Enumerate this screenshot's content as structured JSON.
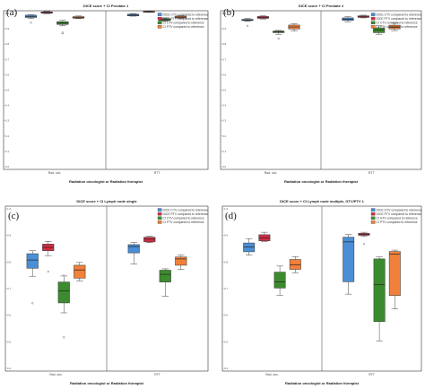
{
  "chart_data": [
    {
      "type": "box",
      "panel_label": "(a)",
      "title": "DICE score + CI Prostate 1",
      "xlabel": "Radiation oncologist or Radiation therapist",
      "categories": [
        "Rad. onc.",
        "RTT"
      ],
      "ylim": [
        0.0,
        1.0
      ],
      "yticks": [
        "1.0",
        "0.9",
        "0.8",
        "0.7",
        "0.6",
        "0.5",
        "0.4",
        "0.3",
        "0.2",
        "0.1",
        "0.0"
      ],
      "legend": "top-right",
      "series": [
        {
          "name": "DICE CTV compared to reference",
          "color": "#4a8fd6",
          "boxes": [
            {
              "whislo": 0.952,
              "q1": 0.958,
              "med": 0.962,
              "q3": 0.972,
              "whishi": 0.975,
              "fliers": [
                0.925
              ]
            },
            {
              "whislo": 0.966,
              "q1": 0.968,
              "med": 0.972,
              "q3": 0.978,
              "whishi": 0.982,
              "fliers": []
            }
          ]
        },
        {
          "name": "DICE PTV compared to reference",
          "color": "#d22d45",
          "boxes": [
            {
              "whislo": 0.982,
              "q1": 0.985,
              "med": 0.988,
              "q3": 0.993,
              "whishi": 0.996,
              "fliers": []
            },
            {
              "whislo": 0.99,
              "q1": 0.991,
              "med": 0.993,
              "q3": 0.997,
              "whishi": 0.999,
              "fliers": []
            }
          ]
        },
        {
          "name": "CI CTV compared to reference",
          "color": "#3d8b2f",
          "boxes": [
            {
              "whislo": 0.905,
              "q1": 0.914,
              "med": 0.922,
              "q3": 0.931,
              "whishi": 0.94,
              "fliers": [
                0.858,
                0.862
              ]
            },
            {
              "whislo": 0.934,
              "q1": 0.938,
              "med": 0.944,
              "q3": 0.95,
              "whishi": 0.955,
              "fliers": []
            }
          ]
        },
        {
          "name": "CI PTV compared to reference",
          "color": "#f0803a",
          "boxes": [
            {
              "whislo": 0.95,
              "q1": 0.953,
              "med": 0.958,
              "q3": 0.963,
              "whishi": 0.967,
              "fliers": []
            },
            {
              "whislo": 0.952,
              "q1": 0.955,
              "med": 0.96,
              "q3": 0.966,
              "whishi": 0.969,
              "fliers": []
            }
          ]
        }
      ]
    },
    {
      "type": "box",
      "panel_label": "(b)",
      "title": "DICE score + CI Prostate 2",
      "xlabel": "Radiation oncologist or Radiation therapist",
      "categories": [
        "Rad. onc.",
        "RTT"
      ],
      "ylim": [
        0.0,
        1.0
      ],
      "yticks": [
        "1.0",
        "0.9",
        "0.8",
        "0.7",
        "0.6",
        "0.5",
        "0.4",
        "0.3",
        "0.2",
        "0.1",
        "0.0"
      ],
      "legend": "top-right",
      "series": [
        {
          "name": "DICE CTV compared to reference",
          "color": "#4a8fd6",
          "boxes": [
            {
              "whislo": 0.933,
              "q1": 0.938,
              "med": 0.942,
              "q3": 0.946,
              "whishi": 0.952,
              "fliers": [
                0.905
              ]
            },
            {
              "whislo": 0.931,
              "q1": 0.939,
              "med": 0.946,
              "q3": 0.955,
              "whishi": 0.962,
              "fliers": []
            }
          ]
        },
        {
          "name": "DICE PTV compared to reference",
          "color": "#d22d45",
          "boxes": [
            {
              "whislo": 0.948,
              "q1": 0.952,
              "med": 0.958,
              "q3": 0.964,
              "whishi": 0.968,
              "fliers": []
            },
            {
              "whislo": 0.955,
              "q1": 0.958,
              "med": 0.962,
              "q3": 0.968,
              "whishi": 0.972,
              "fliers": []
            }
          ]
        },
        {
          "name": "CI CTV compared to reference",
          "color": "#3d8b2f",
          "boxes": [
            {
              "whislo": 0.852,
              "q1": 0.862,
              "med": 0.868,
              "q3": 0.872,
              "whishi": 0.876,
              "fliers": [
                0.825
              ]
            },
            {
              "whislo": 0.852,
              "q1": 0.862,
              "med": 0.878,
              "q3": 0.892,
              "whishi": 0.905,
              "fliers": []
            }
          ]
        },
        {
          "name": "CI PTV compared to reference",
          "color": "#f0803a",
          "boxes": [
            {
              "whislo": 0.872,
              "q1": 0.885,
              "med": 0.898,
              "q3": 0.91,
              "whishi": 0.918,
              "fliers": []
            },
            {
              "whislo": 0.875,
              "q1": 0.886,
              "med": 0.897,
              "q3": 0.909,
              "whishi": 0.922,
              "fliers": []
            }
          ]
        }
      ]
    },
    {
      "type": "box",
      "panel_label": "(c)",
      "title": "DICE score + CI Lymph node single",
      "xlabel": "Radiation oncologist or Radiation therapist",
      "categories": [
        "Rad. onc.",
        "RTT"
      ],
      "ylim": [
        0.4,
        1.0
      ],
      "yticks": [
        "1.0",
        "0.9",
        "0.8",
        "0.7",
        "0.6",
        "0.5",
        "0.4"
      ],
      "legend": "top-right",
      "series": [
        {
          "name": "DICE CTV compared to reference",
          "color": "#4a8fd6",
          "boxes": [
            {
              "whislo": 0.745,
              "q1": 0.774,
              "med": 0.804,
              "q3": 0.827,
              "whishi": 0.838,
              "fliers": [
                0.647
              ]
            },
            {
              "whislo": 0.79,
              "q1": 0.83,
              "med": 0.853,
              "q3": 0.86,
              "whishi": 0.868,
              "fliers": []
            }
          ]
        },
        {
          "name": "DICE PTV compared to reference",
          "color": "#d22d45",
          "boxes": [
            {
              "whislo": 0.82,
              "q1": 0.838,
              "med": 0.85,
              "q3": 0.862,
              "whishi": 0.872,
              "fliers": [
                0.762
              ]
            },
            {
              "whislo": 0.867,
              "q1": 0.87,
              "med": 0.88,
              "q3": 0.887,
              "whishi": 0.89,
              "fliers": []
            }
          ]
        },
        {
          "name": "CI CTV compared to reference",
          "color": "#3d8b2f",
          "boxes": [
            {
              "whislo": 0.612,
              "q1": 0.648,
              "med": 0.692,
              "q3": 0.724,
              "whishi": 0.746,
              "fliers": [
                0.523,
                0.748
              ]
            },
            {
              "whislo": 0.672,
              "q1": 0.724,
              "med": 0.752,
              "q3": 0.767,
              "whishi": 0.772,
              "fliers": []
            }
          ]
        },
        {
          "name": "CI PTV compared to reference",
          "color": "#f0803a",
          "boxes": [
            {
              "whislo": 0.728,
              "q1": 0.738,
              "med": 0.768,
              "q3": 0.785,
              "whishi": 0.795,
              "fliers": []
            },
            {
              "whislo": 0.77,
              "q1": 0.785,
              "med": 0.808,
              "q3": 0.815,
              "whishi": 0.822,
              "fliers": []
            }
          ]
        }
      ]
    },
    {
      "type": "box",
      "panel_label": "(d)",
      "title": "DICE score + CI Lymph node multiple, GTV/PTV 1",
      "xlabel": "Radiation oncologist or Radiation therapist",
      "categories": [
        "Rad. onc.",
        "RTT"
      ],
      "ylim": [
        0.4,
        1.0
      ],
      "yticks": [
        "1.0",
        "0.9",
        "0.8",
        "0.7",
        "0.6",
        "0.5",
        "0.4"
      ],
      "legend": "top-right",
      "series": [
        {
          "name": "DICE GTV compared to reference",
          "color": "#4a8fd6",
          "boxes": [
            {
              "whislo": 0.822,
              "q1": 0.834,
              "med": 0.852,
              "q3": 0.866,
              "whishi": 0.882,
              "fliers": []
            },
            {
              "whislo": 0.68,
              "q1": 0.725,
              "med": 0.87,
              "q3": 0.887,
              "whishi": 0.897,
              "fliers": []
            }
          ]
        },
        {
          "name": "DICE PTV compared to reference",
          "color": "#d22d45",
          "boxes": [
            {
              "whislo": 0.872,
              "q1": 0.874,
              "med": 0.884,
              "q3": 0.896,
              "whishi": 0.905,
              "fliers": []
            },
            {
              "whislo": 0.89,
              "q1": 0.894,
              "med": 0.897,
              "q3": 0.901,
              "whishi": 0.905,
              "fliers": [
                0.862
              ]
            }
          ]
        },
        {
          "name": "CI GTV compared to reference",
          "color": "#3d8b2f",
          "boxes": [
            {
              "whislo": 0.676,
              "q1": 0.702,
              "med": 0.725,
              "q3": 0.76,
              "whishi": 0.782,
              "fliers": []
            },
            {
              "whislo": 0.51,
              "q1": 0.58,
              "med": 0.714,
              "q3": 0.808,
              "whishi": 0.815,
              "fliers": []
            }
          ]
        },
        {
          "name": "CI PTV compared to reference",
          "color": "#f0803a",
          "boxes": [
            {
              "whislo": 0.758,
              "q1": 0.77,
              "med": 0.787,
              "q3": 0.806,
              "whishi": 0.816,
              "fliers": []
            },
            {
              "whislo": 0.626,
              "q1": 0.675,
              "med": 0.826,
              "q3": 0.835,
              "whishi": 0.84,
              "fliers": []
            }
          ]
        }
      ]
    }
  ]
}
